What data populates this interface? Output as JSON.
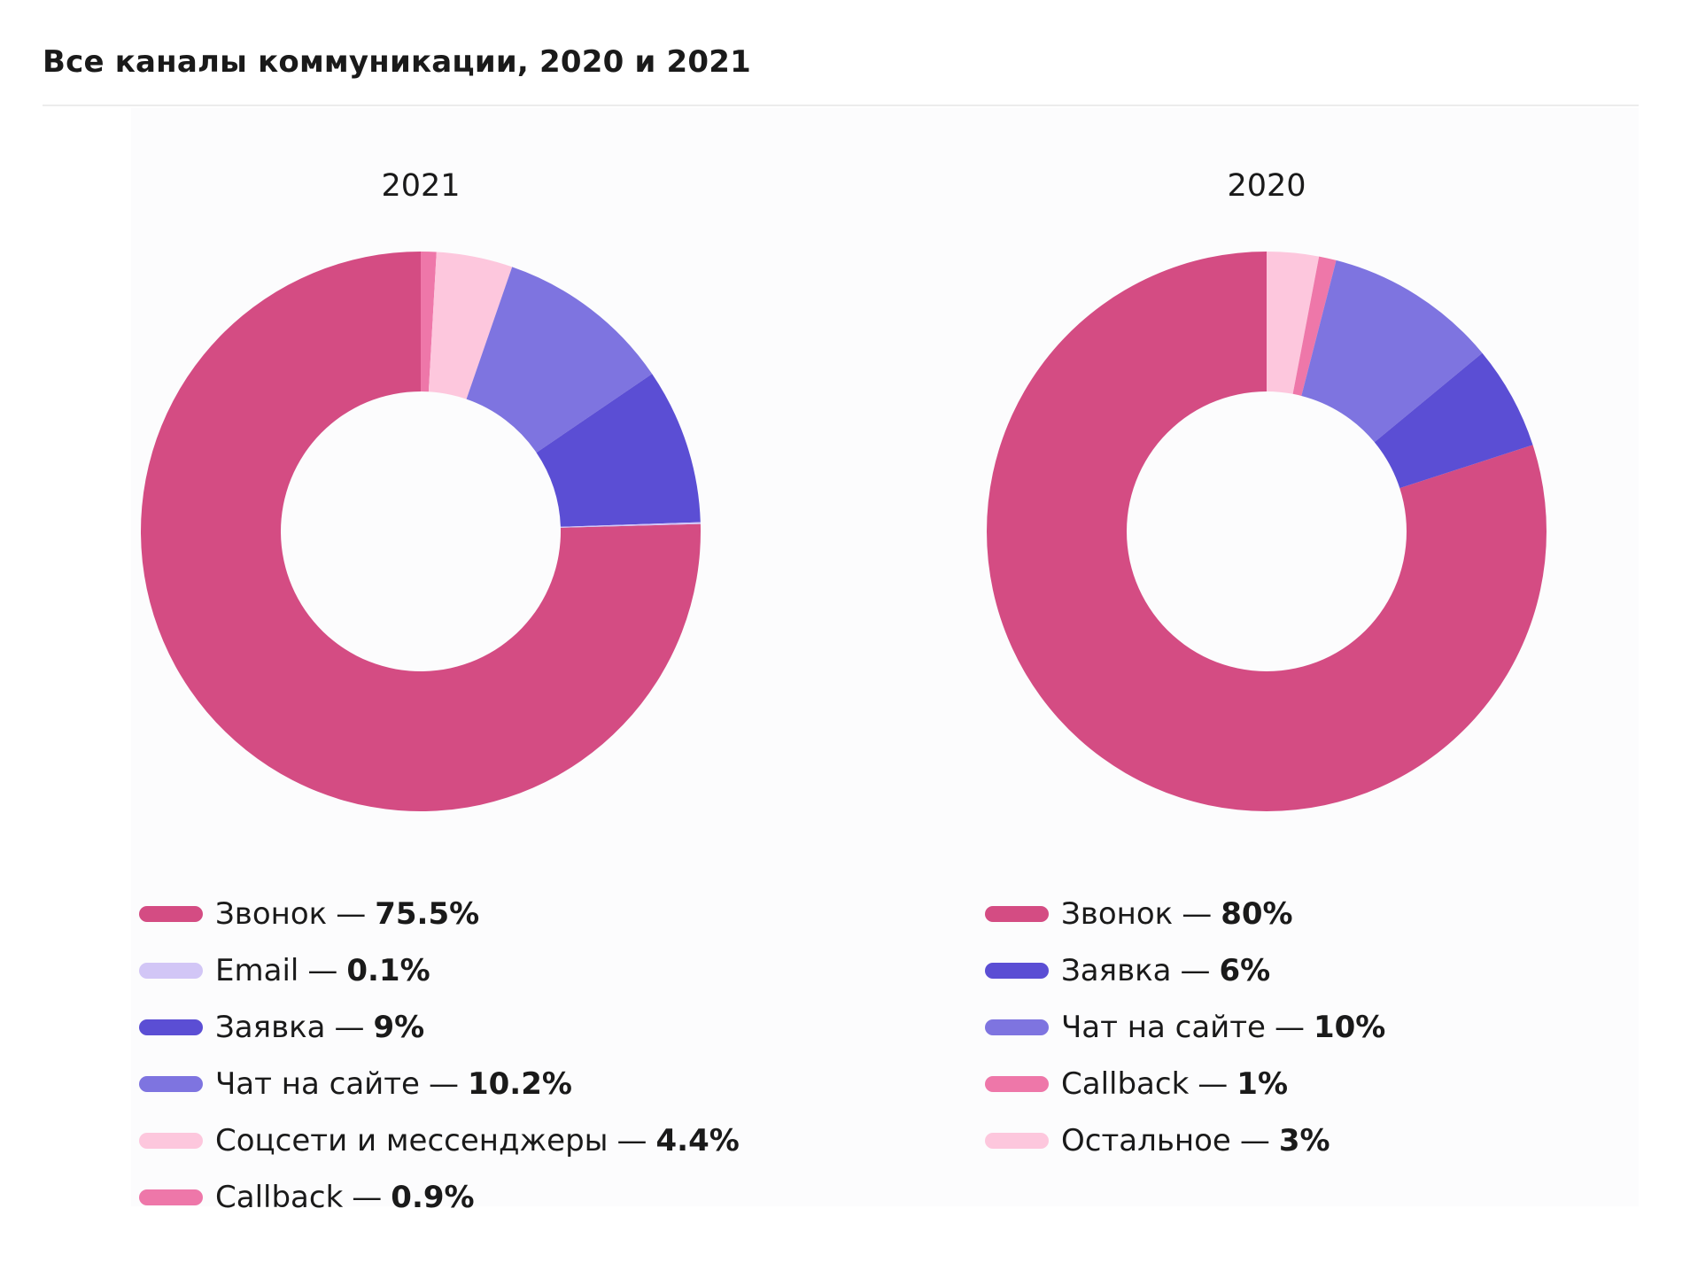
{
  "page": {
    "title": "Все каналы коммуникации, 2020 и 2021"
  },
  "separator": "—",
  "chart_data": [
    {
      "type": "pie",
      "donut": true,
      "title": "2021",
      "unit": "%",
      "series": [
        {
          "name": "Звонок",
          "value": 75.5,
          "label": "75.5%",
          "color": "#d44c83"
        },
        {
          "name": "Email",
          "value": 0.1,
          "label": "0.1%",
          "color": "#d2c6f6"
        },
        {
          "name": "Заявка",
          "value": 9,
          "label": "9%",
          "color": "#5b4ed4"
        },
        {
          "name": "Чат на сайте",
          "value": 10.2,
          "label": "10.2%",
          "color": "#7e74e0"
        },
        {
          "name": "Соцсети и мессенджеры",
          "value": 4.4,
          "label": "4.4%",
          "color": "#fdc7dd"
        },
        {
          "name": "Callback",
          "value": 0.9,
          "label": "0.9%",
          "color": "#ee77a9"
        }
      ]
    },
    {
      "type": "pie",
      "donut": true,
      "title": "2020",
      "unit": "%",
      "series": [
        {
          "name": "Звонок",
          "value": 80,
          "label": "80%",
          "color": "#d44c83"
        },
        {
          "name": "Заявка",
          "value": 6,
          "label": "6%",
          "color": "#5b4ed4"
        },
        {
          "name": "Чат на сайте",
          "value": 10,
          "label": "10%",
          "color": "#7e74e0"
        },
        {
          "name": "Callback",
          "value": 1,
          "label": "1%",
          "color": "#ee77a9"
        },
        {
          "name": "Остальное",
          "value": 3,
          "label": "3%",
          "color": "#fdc7dd"
        }
      ]
    }
  ]
}
